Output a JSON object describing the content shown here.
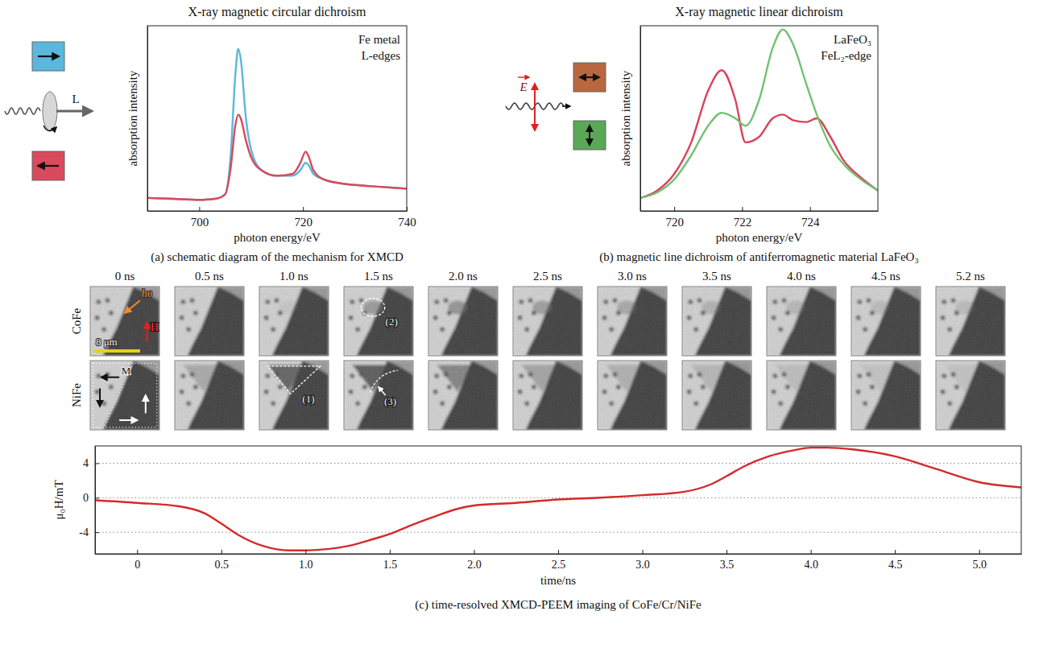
{
  "chart_data": [
    {
      "type": "line",
      "title": "X-ray magnetic circular dichroism",
      "caption": "(a) schematic diagram of the mechanism for XMCD",
      "x_label": "photon energy/eV",
      "y_label": "absorption intensity",
      "annotations": [
        "Fe metal",
        "L-edges"
      ],
      "icon_label": "L",
      "xlim": [
        690,
        740
      ],
      "xticks": [
        700,
        720,
        740
      ],
      "ylim": [
        0,
        1
      ],
      "tick_labels": "x",
      "x": [
        690,
        695,
        700,
        703,
        705,
        706,
        707,
        707.5,
        708,
        709,
        710,
        712,
        715,
        718,
        719.5,
        720.5,
        721,
        722,
        724,
        727,
        730,
        735,
        740
      ],
      "series": [
        {
          "color": "#5bb8dc",
          "values": [
            0.07,
            0.065,
            0.06,
            0.065,
            0.09,
            0.28,
            0.75,
            0.875,
            0.82,
            0.5,
            0.33,
            0.22,
            0.19,
            0.19,
            0.22,
            0.26,
            0.25,
            0.2,
            0.17,
            0.15,
            0.14,
            0.13,
            0.12
          ]
        },
        {
          "color": "#d94a5c",
          "values": [
            0.07,
            0.065,
            0.06,
            0.065,
            0.09,
            0.22,
            0.47,
            0.52,
            0.5,
            0.38,
            0.29,
            0.22,
            0.19,
            0.2,
            0.26,
            0.32,
            0.3,
            0.22,
            0.17,
            0.15,
            0.14,
            0.13,
            0.12
          ]
        }
      ]
    },
    {
      "type": "line",
      "title": "X-ray magnetic linear dichroism",
      "caption": "(b) magnetic line dichroism of antiferromagnetic material LaFeO₃",
      "x_label": "photon energy/eV",
      "y_label": "absorption intensity",
      "annotations": [
        "LaFeO₃",
        "FeL₂-edge"
      ],
      "icon_label": "E",
      "xlim": [
        719,
        726
      ],
      "xticks": [
        720,
        722,
        724
      ],
      "ylim": [
        0,
        1
      ],
      "tick_labels": "x",
      "x": [
        719,
        719.5,
        720,
        720.5,
        721,
        721.4,
        721.8,
        722.1,
        722.5,
        722.9,
        723.2,
        723.5,
        723.9,
        724.2,
        724.6,
        725,
        725.5,
        726
      ],
      "series": [
        {
          "color": "#d9415a",
          "values": [
            0.07,
            0.11,
            0.2,
            0.37,
            0.65,
            0.76,
            0.6,
            0.37,
            0.4,
            0.5,
            0.52,
            0.49,
            0.48,
            0.5,
            0.4,
            0.27,
            0.18,
            0.11
          ]
        },
        {
          "color": "#72c172",
          "values": [
            0.07,
            0.1,
            0.17,
            0.3,
            0.46,
            0.53,
            0.5,
            0.46,
            0.6,
            0.88,
            0.98,
            0.9,
            0.68,
            0.52,
            0.35,
            0.25,
            0.17,
            0.11
          ]
        }
      ]
    },
    {
      "type": "image",
      "columns": [
        "0 ns",
        "0.5 ns",
        "1.0 ns",
        "1.5 ns",
        "2.0 ns",
        "2.5 ns",
        "3.0 ns",
        "3.5 ns",
        "4.0 ns",
        "4.5 ns",
        "5.2 ns"
      ],
      "rows": [
        "CoFe",
        "NiFe"
      ],
      "annotations": {
        "light": "hυ",
        "field": "H",
        "scale_bar": "8 μm",
        "magnetization": "M",
        "regions": [
          "(1)",
          "(2)",
          "(3)"
        ]
      }
    },
    {
      "type": "line",
      "caption": "(c) time-resolved XMCD-PEEM imaging of CoFe/Cr/NiFe",
      "x_label": "time/ns",
      "y_label": "μ₀H/mT",
      "xlim": [
        -0.25,
        5.25
      ],
      "xticks": [
        0,
        0.5,
        {
          "value": 1,
          "label": "1.0"
        },
        1.5,
        {
          "value": 2,
          "label": "2.0"
        },
        2.5,
        {
          "value": 3,
          "label": "3.0"
        },
        3.5,
        {
          "value": 4,
          "label": "4.0"
        },
        4.5,
        {
          "value": 5,
          "label": "5.0"
        }
      ],
      "ylim": [
        -6.5,
        6
      ],
      "yticks": [
        -4,
        0,
        4
      ],
      "grid": true,
      "x": [
        -0.25,
        0,
        0.25,
        0.4,
        0.5,
        0.6,
        0.75,
        0.9,
        1.0,
        1.1,
        1.25,
        1.4,
        1.5,
        1.6,
        1.75,
        1.9,
        2.0,
        2.25,
        2.5,
        2.75,
        3.0,
        3.25,
        3.4,
        3.5,
        3.6,
        3.75,
        3.9,
        4.0,
        4.1,
        4.25,
        4.5,
        4.75,
        5.0,
        5.25
      ],
      "series": [
        {
          "color": "#d42a2a",
          "values": [
            -0.3,
            -0.6,
            -1.0,
            -1.8,
            -3.0,
            -4.3,
            -5.6,
            -6.1,
            -6.1,
            -6.0,
            -5.6,
            -4.8,
            -4.2,
            -3.4,
            -2.3,
            -1.3,
            -0.9,
            -0.6,
            -0.2,
            0.0,
            0.3,
            0.7,
            1.5,
            2.5,
            3.6,
            4.8,
            5.5,
            5.8,
            5.8,
            5.6,
            4.8,
            3.3,
            1.8,
            1.2
          ]
        }
      ]
    }
  ]
}
